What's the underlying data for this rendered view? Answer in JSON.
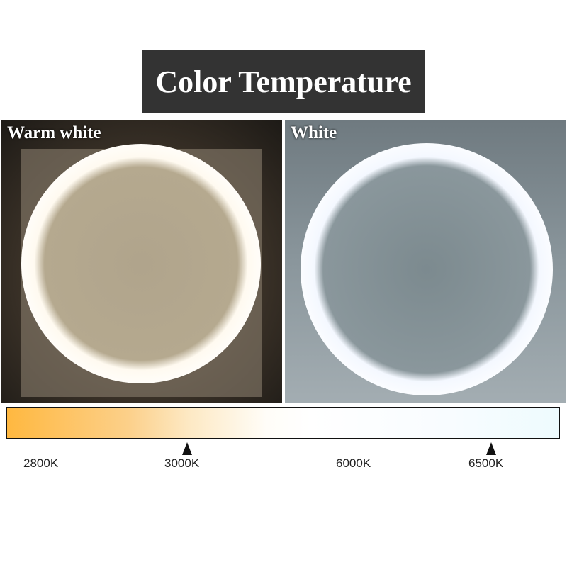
{
  "title": "Color Temperature",
  "panels": [
    {
      "label": "Warm white"
    },
    {
      "label": "White"
    }
  ],
  "scale": {
    "gradient_colors": [
      "#ffb840",
      "#fde9c4",
      "#ffffff",
      "#eefbfe"
    ],
    "ticks": [
      "2800K",
      "3000K",
      "6000K",
      "6500K"
    ],
    "marked": [
      "3000K",
      "6500K"
    ]
  }
}
